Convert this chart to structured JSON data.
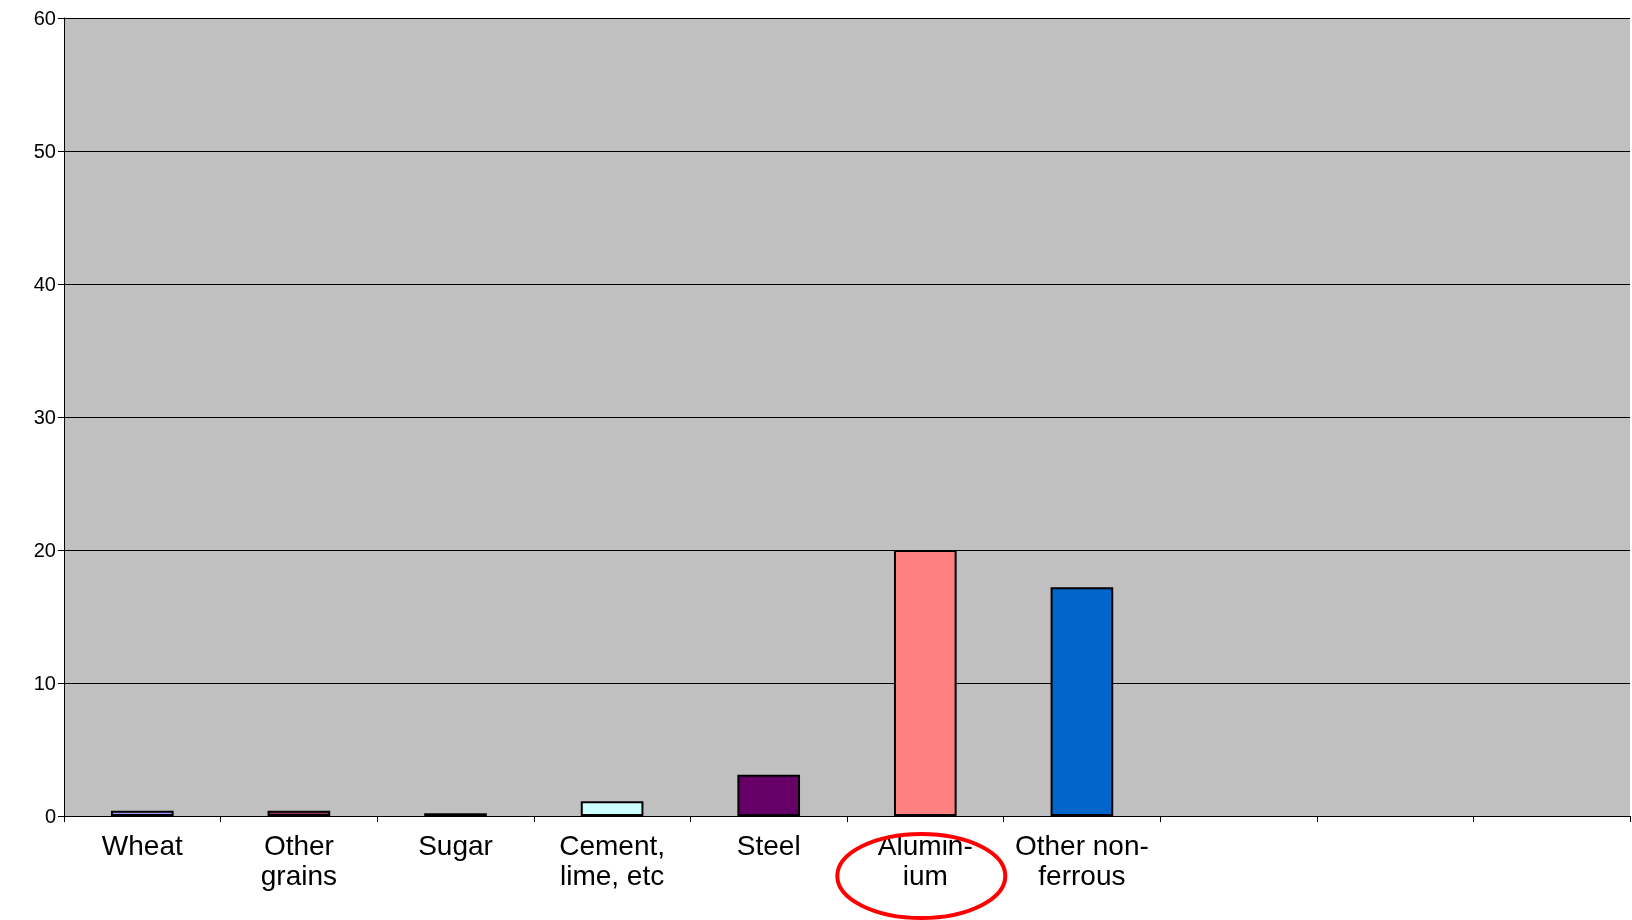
{
  "chart_data": {
    "type": "bar",
    "categories": [
      "Wheat",
      "Other\ngrains",
      "Sugar",
      "Cement,\nlime, etc",
      "Steel",
      "Alumin-\nium",
      "Other non-\nferrous",
      null,
      null,
      null
    ],
    "values": [
      0.4,
      0.4,
      0.2,
      1.1,
      3.1,
      20,
      17.2,
      null,
      null,
      null
    ],
    "colors": [
      "#9999ff",
      "#993366",
      "#ffffcc",
      "#ccffff",
      "#660066",
      "#ff8080",
      "#0066cc",
      null,
      null,
      null
    ],
    "ylim": [
      0,
      60
    ],
    "yticks": [
      0,
      10,
      20,
      30,
      40,
      50,
      60
    ],
    "grid": "y"
  }
}
